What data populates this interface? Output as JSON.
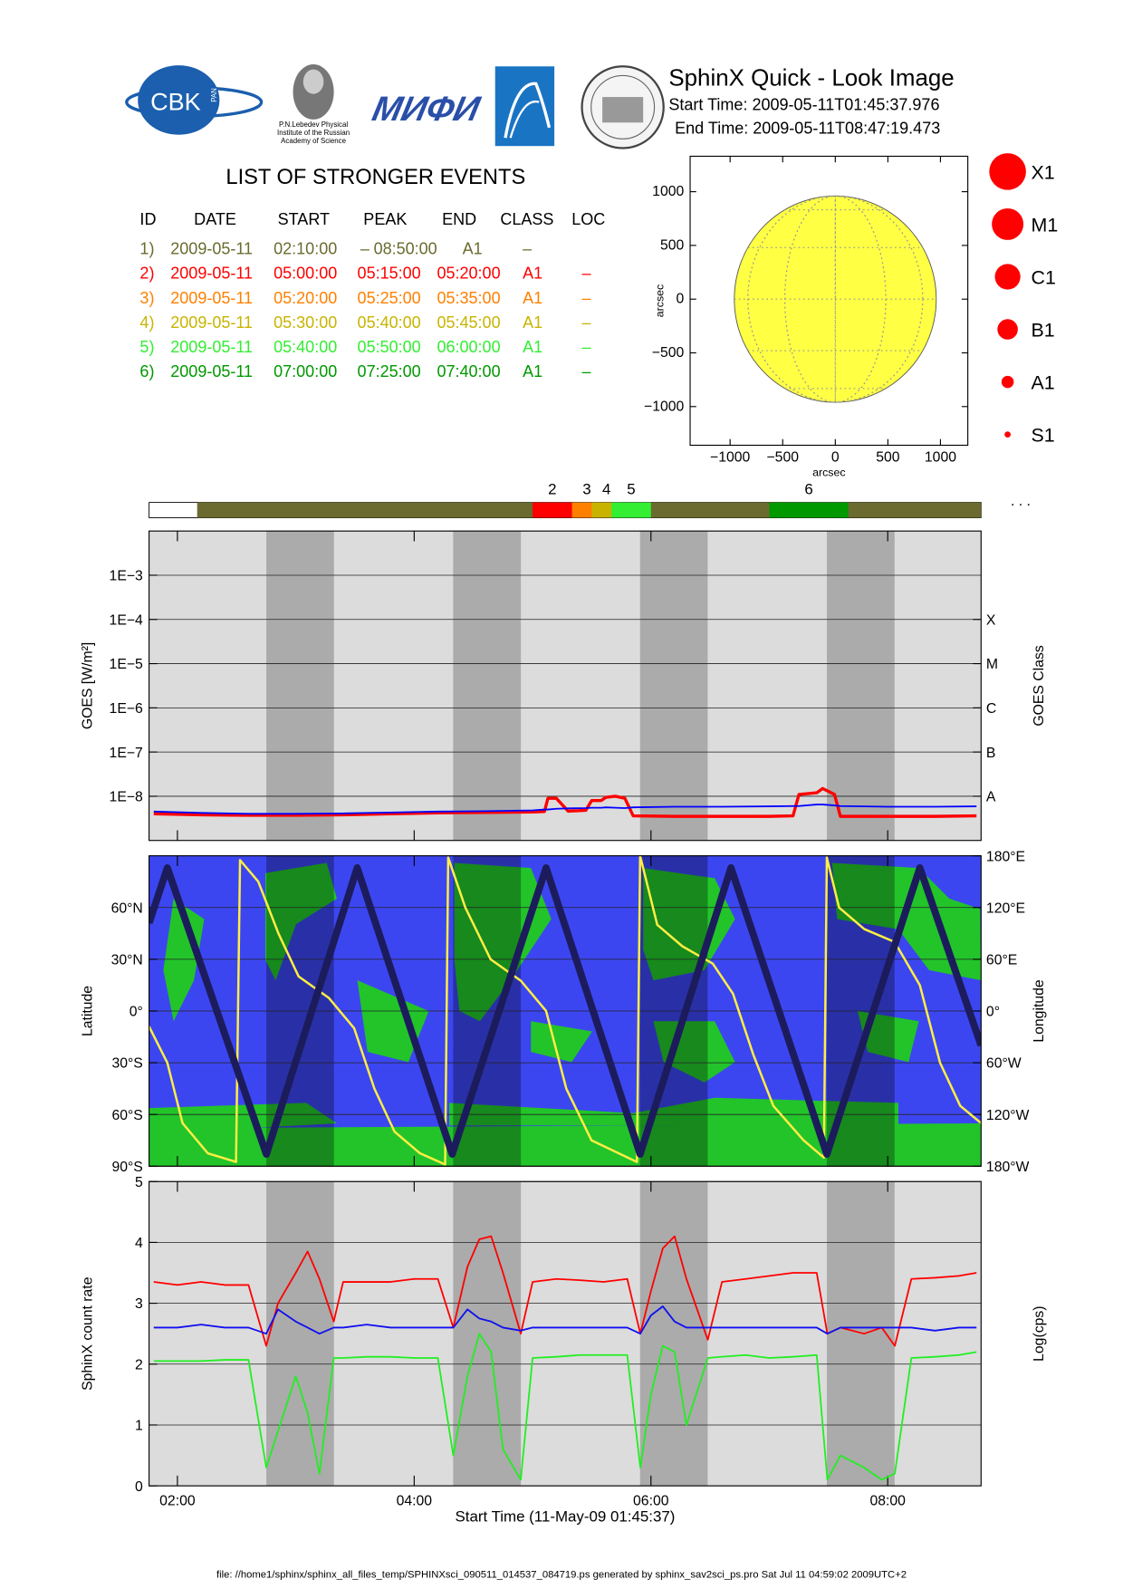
{
  "header": {
    "title": "SphinX Quick - Look Image",
    "start": "Start Time: 2009-05-11T01:45:37.976",
    "end": "End Time: 2009-05-11T08:47:19.473",
    "logos": {
      "cbk": "CBK",
      "pan": "PAN",
      "lebedev": [
        "P.N.Lebedev Physical",
        "Institute of the Russian",
        "Academy of Science"
      ],
      "mifi": "МИФИ"
    }
  },
  "events": {
    "title": "LIST OF STRONGER EVENTS",
    "columns": [
      "ID",
      "DATE",
      "START",
      "PEAK",
      "END",
      "CLASS",
      "LOC"
    ],
    "colors": [
      "#6b6b2f",
      "#ff0000",
      "#ff8000",
      "#c8b400",
      "#33ee33",
      "#009900"
    ],
    "rows": [
      [
        "1)",
        "2009-05-11",
        "02:10:00",
        "–",
        "08:50:00",
        "A1",
        "–"
      ],
      [
        "2)",
        "2009-05-11",
        "05:00:00",
        "05:15:00",
        "05:20:00",
        "A1",
        "–"
      ],
      [
        "3)",
        "2009-05-11",
        "05:20:00",
        "05:25:00",
        "05:35:00",
        "A1",
        "–"
      ],
      [
        "4)",
        "2009-05-11",
        "05:30:00",
        "05:40:00",
        "05:45:00",
        "A1",
        "–"
      ],
      [
        "5)",
        "2009-05-11",
        "05:40:00",
        "05:50:00",
        "06:00:00",
        "A1",
        "–"
      ],
      [
        "6)",
        "2009-05-11",
        "07:00:00",
        "07:25:00",
        "07:40:00",
        "A1",
        "–"
      ]
    ]
  },
  "event_bar": {
    "labels": [
      "2",
      "3",
      "4",
      "5",
      "6"
    ],
    "more": ". . ."
  },
  "chart_data": [
    {
      "type": "disk",
      "xlabel": "arcsec",
      "ylabel": "arcsec",
      "xlim": [
        -1380,
        1260
      ],
      "ylim": [
        -1360,
        1330
      ],
      "xticks": [
        {
          "value": -1000,
          "label": "−1000"
        },
        {
          "value": -500,
          "label": "−500"
        },
        0,
        500,
        1000
      ],
      "yticks": [
        {
          "value": -1000,
          "label": "−1000"
        },
        {
          "value": -500,
          "label": "−500"
        },
        0,
        500,
        1000
      ],
      "radius": 960,
      "color": "#ffff44",
      "size_legend": [
        "X1",
        "M1",
        "C1",
        "B1",
        "A1",
        "S1"
      ],
      "size_color": "#ff0000"
    },
    {
      "type": "line",
      "ylabel": "GOES [W/m²]",
      "y2label": "GOES Class",
      "ylog": true,
      "grid": true,
      "xlim": [
        1.7604,
        8.7887
      ],
      "ylim": [
        1e-09,
        0.01
      ],
      "yticks": [
        {
          "value": 0.001,
          "label": "1E−3"
        },
        {
          "value": 0.0001,
          "label": "1E−4"
        },
        {
          "value": 1e-05,
          "label": "1E−5"
        },
        {
          "value": 1e-06,
          "label": "1E−6"
        },
        {
          "value": 1e-07,
          "label": "1E−7"
        },
        {
          "value": 1e-08,
          "label": "1E−8"
        }
      ],
      "y2ticks": [
        {
          "value": 1e-08,
          "label": "A"
        },
        {
          "value": 1e-07,
          "label": "B"
        },
        {
          "value": 1e-06,
          "label": "C"
        },
        {
          "value": 1e-05,
          "label": "M"
        },
        {
          "value": 0.0001,
          "label": "X"
        }
      ],
      "shaded": [
        [
          2.751,
          3.322
        ],
        [
          4.329,
          4.901
        ],
        [
          5.908,
          6.479
        ],
        [
          7.486,
          8.058
        ]
      ],
      "shade_color": "#ababab",
      "x": [
        1.8,
        2.2,
        2.6,
        3.0,
        3.4,
        3.8,
        4.2,
        4.6,
        5.0,
        5.1,
        5.13,
        5.2,
        5.3,
        5.45,
        5.5,
        5.58,
        5.62,
        5.7,
        5.78,
        5.85,
        6.2,
        6.6,
        7.0,
        7.2,
        7.25,
        7.4,
        7.45,
        7.55,
        7.6,
        8.0,
        8.4,
        8.75
      ],
      "series": [
        {
          "color": "#ff0000",
          "values": [
            4e-09,
            3.8e-09,
            3.7e-09,
            3.7e-09,
            3.8e-09,
            4e-09,
            4.2e-09,
            4.3e-09,
            4.4e-09,
            4.5e-09,
            9e-09,
            9e-09,
            4.6e-09,
            4.8e-09,
            8e-09,
            8e-09,
            9.5e-09,
            1e-08,
            9e-09,
            3.6e-09,
            3.5e-09,
            3.5e-09,
            3.5e-09,
            3.6e-09,
            1.1e-08,
            1.2e-08,
            1.5e-08,
            1.1e-08,
            3.5e-09,
            3.5e-09,
            3.5e-09,
            3.6e-09
          ]
        },
        {
          "color": "#0000ff",
          "values": [
            4.5e-09,
            4.2e-09,
            4e-09,
            4e-09,
            4.1e-09,
            4.3e-09,
            4.5e-09,
            4.6e-09,
            4.8e-09,
            5e-09,
            5e-09,
            5.2e-09,
            5.3e-09,
            5.4e-09,
            5.5e-09,
            5.5e-09,
            5.6e-09,
            5.5e-09,
            5.4e-09,
            5.6e-09,
            5.8e-09,
            5.8e-09,
            5.9e-09,
            6e-09,
            6e-09,
            6.5e-09,
            6.5e-09,
            6.2e-09,
            6e-09,
            5.8e-09,
            5.8e-09,
            5.9e-09
          ]
        }
      ]
    },
    {
      "type": "line",
      "ylabel": "Latitude",
      "y2label": "Longitude",
      "grid": true,
      "xlim": [
        1.7604,
        8.7887
      ],
      "ylim": [
        -90,
        90
      ],
      "yticks": [
        {
          "value": -90,
          "label": "90°S"
        },
        {
          "value": -60,
          "label": "60°S"
        },
        {
          "value": -30,
          "label": "30°S"
        },
        {
          "value": 0,
          "label": "0°"
        },
        {
          "value": 30,
          "label": "30°N"
        },
        {
          "value": 60,
          "label": "60°N"
        }
      ],
      "y2lim": [
        -180,
        180
      ],
      "y2ticks": [
        {
          "value": -180,
          "label": "180°W"
        },
        {
          "value": -120,
          "label": "120°W"
        },
        {
          "value": -60,
          "label": "60°W"
        },
        {
          "value": 0,
          "label": "0°"
        },
        {
          "value": 60,
          "label": "60°E"
        },
        {
          "value": 120,
          "label": "120°E"
        },
        {
          "value": 180,
          "label": "180°E"
        }
      ],
      "shaded": [
        [
          2.751,
          3.322
        ],
        [
          4.329,
          4.901
        ],
        [
          5.908,
          6.479
        ],
        [
          7.486,
          8.058
        ]
      ],
      "shade_color": "rgba(0,0,0,0.3)",
      "series": [
        {
          "color": "#ffee44",
          "axis": "y2",
          "x": [
            1.7604,
            1.915,
            2.043,
            2.256,
            2.495,
            2.529,
            2.683,
            2.853,
            3.024,
            3.28,
            3.493,
            3.664,
            3.834,
            4.048,
            4.261,
            4.287,
            4.432,
            4.645,
            4.901,
            5.114,
            5.285,
            5.498,
            5.882,
            5.908,
            6.053,
            6.266,
            6.522,
            6.693,
            6.863,
            7.034,
            7.29,
            7.461,
            7.486,
            7.589,
            7.802,
            8.058,
            8.271,
            8.442,
            8.613,
            8.7887
          ],
          "values": [
            -18,
            -60,
            -130,
            -165,
            -175,
            175,
            150,
            90,
            40,
            15,
            -20,
            -90,
            -140,
            -165,
            -178,
            178,
            120,
            60,
            35,
            0,
            -90,
            -150,
            -175,
            180,
            100,
            75,
            55,
            20,
            -50,
            -110,
            -150,
            -170,
            178,
            120,
            95,
            80,
            30,
            -60,
            -110,
            -130
          ]
        },
        {
          "color": "#1c1c5c",
          "x": [
            1.7604,
            1.915,
            2.751,
            3.519,
            4.321,
            5.114,
            5.908,
            6.676,
            7.486,
            8.271,
            8.7887
          ],
          "values": [
            51,
            83,
            -83,
            83,
            -83,
            83,
            -83,
            83,
            -83,
            83,
            -20
          ]
        }
      ]
    },
    {
      "type": "line",
      "ylabel": "SphinX count rate",
      "y2label": "Log(cps)",
      "grid": true,
      "xlabel": "Start Time (11-May-09 01:45:37)",
      "xlim": [
        1.7604,
        8.7887
      ],
      "xticks": [
        {
          "value": 2,
          "label": "02:00"
        },
        {
          "value": 4,
          "label": "04:00"
        },
        {
          "value": 6,
          "label": "06:00"
        },
        {
          "value": 8,
          "label": "08:00"
        }
      ],
      "ylim": [
        0,
        5
      ],
      "yticks": [
        0,
        1,
        2,
        3,
        4,
        5
      ],
      "shaded": [
        [
          2.751,
          3.322
        ],
        [
          4.329,
          4.901
        ],
        [
          5.908,
          6.479
        ],
        [
          7.486,
          8.058
        ]
      ],
      "shade_color": "#ababab",
      "x": [
        1.8,
        2.0,
        2.2,
        2.4,
        2.6,
        2.75,
        2.85,
        3.0,
        3.1,
        3.2,
        3.32,
        3.4,
        3.6,
        3.8,
        4.0,
        4.2,
        4.33,
        4.45,
        4.55,
        4.65,
        4.75,
        4.9,
        5.0,
        5.2,
        5.4,
        5.6,
        5.8,
        5.91,
        6.0,
        6.1,
        6.2,
        6.3,
        6.48,
        6.6,
        6.8,
        7.0,
        7.2,
        7.4,
        7.49,
        7.6,
        7.8,
        7.95,
        8.06,
        8.2,
        8.4,
        8.6,
        8.75
      ],
      "series": [
        {
          "color": "#ff0000",
          "values": [
            3.35,
            3.3,
            3.35,
            3.3,
            3.3,
            2.3,
            3.0,
            3.5,
            3.85,
            3.4,
            2.7,
            3.35,
            3.35,
            3.35,
            3.4,
            3.4,
            2.6,
            3.6,
            4.05,
            4.1,
            3.5,
            2.5,
            3.35,
            3.4,
            3.38,
            3.35,
            3.4,
            2.5,
            3.2,
            3.9,
            4.1,
            3.4,
            2.4,
            3.35,
            3.4,
            3.45,
            3.5,
            3.5,
            2.5,
            2.6,
            2.5,
            2.6,
            2.3,
            3.4,
            3.42,
            3.45,
            3.5
          ]
        },
        {
          "color": "#22ee22",
          "values": [
            2.05,
            2.05,
            2.05,
            2.07,
            2.07,
            0.3,
            0.9,
            1.8,
            1.2,
            0.2,
            2.1,
            2.1,
            2.12,
            2.12,
            2.1,
            2.1,
            0.5,
            1.8,
            2.5,
            2.2,
            0.6,
            0.1,
            2.1,
            2.12,
            2.15,
            2.15,
            2.15,
            0.3,
            1.5,
            2.3,
            2.2,
            1.0,
            2.1,
            2.12,
            2.15,
            2.1,
            2.12,
            2.15,
            0.1,
            0.5,
            0.3,
            0.1,
            0.2,
            2.1,
            2.12,
            2.15,
            2.2
          ]
        },
        {
          "color": "#1010ee",
          "values": [
            2.6,
            2.6,
            2.65,
            2.6,
            2.6,
            2.5,
            2.9,
            2.7,
            2.6,
            2.5,
            2.6,
            2.6,
            2.65,
            2.6,
            2.6,
            2.6,
            2.6,
            2.9,
            2.75,
            2.7,
            2.6,
            2.55,
            2.6,
            2.6,
            2.6,
            2.6,
            2.6,
            2.5,
            2.8,
            2.95,
            2.7,
            2.6,
            2.6,
            2.6,
            2.6,
            2.6,
            2.6,
            2.6,
            2.5,
            2.6,
            2.6,
            2.6,
            2.6,
            2.6,
            2.55,
            2.6,
            2.6
          ]
        }
      ]
    }
  ],
  "footer": "file: //home1/sphinx/sphinx_all_files_temp/SPHINXsci_090511_014537_084719.ps generated by sphinx_sav2sci_ps.pro Sat Jul 11 04:59:02 2009UTC+2"
}
